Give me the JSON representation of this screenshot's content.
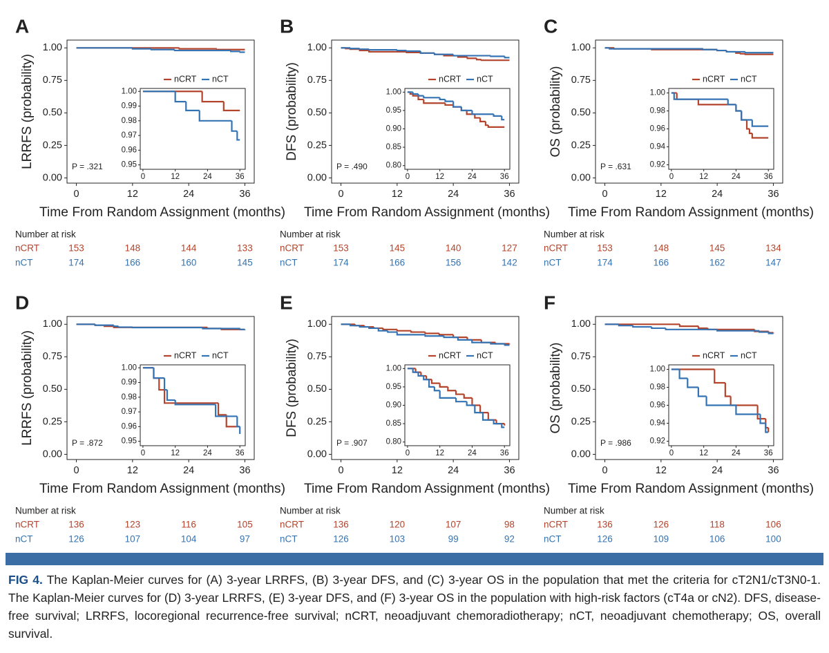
{
  "chart_data": [
    {
      "type": "step",
      "panel": "A",
      "ylabel": "LRRFS (probability)",
      "xlabel": "Time From Random Assignment (months)",
      "annotation": "P = .321",
      "xlim": [
        -2,
        38
      ],
      "ylim": [
        -0.04,
        1.06
      ],
      "xticks": [
        0,
        12,
        24,
        36
      ],
      "yticks": [
        {
          "value": 0,
          "label": "0.00"
        },
        0.25,
        {
          "value": 0.5,
          "label": "0.50"
        },
        0.75,
        {
          "value": 1,
          "label": "1.00"
        }
      ],
      "inset": {
        "xlim": [
          -1,
          38
        ],
        "ylim": [
          0.947,
          1.002
        ],
        "xticks": [
          0,
          12,
          24,
          36
        ],
        "yticks": [
          0.95,
          0.96,
          0.97,
          0.98,
          0.99,
          {
            "value": 1,
            "label": "1.00"
          }
        ]
      },
      "series": [
        {
          "name": "nCRT",
          "color": "#b4432b",
          "x": [
            0,
            22,
            30,
            36
          ],
          "values": [
            1,
            0.993,
            0.987,
            0.987
          ]
        },
        {
          "name": "nCT",
          "color": "#3473b3",
          "x": [
            0,
            12,
            16,
            21,
            33,
            35,
            36
          ],
          "values": [
            1,
            0.993,
            0.987,
            0.98,
            0.973,
            0.967,
            0.967
          ]
        }
      ],
      "risk_table": {
        "title": "Number at risk",
        "rows": [
          {
            "name": "nCRT",
            "values": [
              153,
              148,
              144,
              133
            ]
          },
          {
            "name": "nCT",
            "values": [
              174,
              166,
              160,
              145
            ]
          }
        ]
      }
    },
    {
      "type": "step",
      "panel": "B",
      "ylabel": "DFS (probability)",
      "xlabel": "Time From Random Assignment (months)",
      "annotation": "P = .490",
      "xlim": [
        -2,
        38
      ],
      "ylim": [
        -0.04,
        1.06
      ],
      "xticks": [
        0,
        12,
        24,
        36
      ],
      "yticks": [
        {
          "value": 0,
          "label": "0.00"
        },
        0.25,
        {
          "value": 0.5,
          "label": "0.50"
        },
        0.75,
        {
          "value": 1,
          "label": "1.00"
        }
      ],
      "inset": {
        "xlim": [
          -1,
          38
        ],
        "ylim": [
          0.79,
          1.01
        ],
        "xticks": [
          0,
          12,
          24,
          36
        ],
        "yticks": [
          {
            "value": 0.8,
            "label": "0.80"
          },
          0.85,
          {
            "value": 0.9,
            "label": "0.90"
          },
          0.95,
          {
            "value": 1,
            "label": "1.00"
          }
        ]
      },
      "series": [
        {
          "name": "nCRT",
          "color": "#b4432b",
          "x": [
            0,
            1,
            2,
            4,
            6,
            14,
            17,
            20,
            22,
            25,
            27,
            29,
            30,
            36
          ],
          "values": [
            1,
            0.995,
            0.99,
            0.98,
            0.97,
            0.965,
            0.96,
            0.95,
            0.94,
            0.93,
            0.92,
            0.91,
            0.905,
            0.905
          ]
        },
        {
          "name": "nCT",
          "color": "#3473b3",
          "x": [
            0,
            2,
            4,
            6,
            12,
            14,
            17,
            20,
            24,
            32,
            35,
            36
          ],
          "values": [
            1,
            0.995,
            0.99,
            0.985,
            0.98,
            0.975,
            0.96,
            0.95,
            0.94,
            0.935,
            0.925,
            0.925
          ]
        }
      ],
      "risk_table": {
        "title": "Number at risk",
        "rows": [
          {
            "name": "nCRT",
            "values": [
              153,
              145,
              140,
              127
            ]
          },
          {
            "name": "nCT",
            "values": [
              174,
              166,
              156,
              142
            ]
          }
        ]
      }
    },
    {
      "type": "step",
      "panel": "C",
      "ylabel": "OS (probability)",
      "xlabel": "Time From Random Assignment (months)",
      "annotation": "P = .631",
      "xlim": [
        -2,
        38
      ],
      "ylim": [
        -0.04,
        1.06
      ],
      "xticks": [
        0,
        12,
        24,
        36
      ],
      "yticks": [
        {
          "value": 0,
          "label": "0.00"
        },
        0.25,
        {
          "value": 0.5,
          "label": "0.50"
        },
        0.75,
        {
          "value": 1,
          "label": "1.00"
        }
      ],
      "inset": {
        "xlim": [
          -1,
          38
        ],
        "ylim": [
          0.915,
          1.005
        ],
        "xticks": [
          0,
          12,
          24,
          36
        ],
        "yticks": [
          0.92,
          0.94,
          0.96,
          0.98,
          {
            "value": 1,
            "label": "1.00"
          }
        ]
      },
      "series": [
        {
          "name": "nCRT",
          "color": "#b4432b",
          "x": [
            0,
            2,
            10,
            24,
            26,
            28,
            29,
            30,
            36
          ],
          "values": [
            1,
            0.993,
            0.987,
            0.98,
            0.97,
            0.96,
            0.955,
            0.95,
            0.95
          ]
        },
        {
          "name": "nCT",
          "color": "#3473b3",
          "x": [
            0,
            1,
            21,
            24,
            26,
            30,
            36
          ],
          "values": [
            1,
            0.993,
            0.987,
            0.98,
            0.97,
            0.963,
            0.963
          ]
        }
      ],
      "risk_table": {
        "title": "Number at risk",
        "rows": [
          {
            "name": "nCRT",
            "values": [
              153,
              148,
              145,
              134
            ]
          },
          {
            "name": "nCT",
            "values": [
              174,
              166,
              162,
              147
            ]
          }
        ]
      }
    },
    {
      "type": "step",
      "panel": "D",
      "ylabel": "LRRFS (probability)",
      "xlabel": "Time From Random Assignment (months)",
      "annotation": "P = .872",
      "xlim": [
        -2,
        38
      ],
      "ylim": [
        -0.04,
        1.06
      ],
      "xticks": [
        0,
        12,
        24,
        36
      ],
      "yticks": [
        {
          "value": 0,
          "label": "0.00"
        },
        0.25,
        {
          "value": 0.5,
          "label": "0.50"
        },
        0.75,
        {
          "value": 1,
          "label": "1.00"
        }
      ],
      "inset": {
        "xlim": [
          -1,
          38
        ],
        "ylim": [
          0.947,
          1.002
        ],
        "xticks": [
          0,
          12,
          24,
          36
        ],
        "yticks": [
          0.95,
          0.96,
          0.97,
          0.98,
          0.99,
          {
            "value": 1,
            "label": "1.00"
          }
        ]
      },
      "series": [
        {
          "name": "nCRT",
          "color": "#b4432b",
          "x": [
            0,
            4,
            6,
            8,
            28,
            31,
            36
          ],
          "values": [
            1,
            0.993,
            0.985,
            0.976,
            0.968,
            0.96,
            0.96
          ]
        },
        {
          "name": "nCT",
          "color": "#3473b3",
          "x": [
            0,
            4,
            8,
            9,
            12,
            27,
            35,
            36
          ],
          "values": [
            1,
            0.993,
            0.985,
            0.978,
            0.975,
            0.967,
            0.96,
            0.955
          ]
        }
      ],
      "risk_table": {
        "title": "Number at risk",
        "rows": [
          {
            "name": "nCRT",
            "values": [
              136,
              123,
              116,
              105
            ]
          },
          {
            "name": "nCT",
            "values": [
              126,
              107,
              104,
              97
            ]
          }
        ]
      }
    },
    {
      "type": "step",
      "panel": "E",
      "ylabel": "DFS (probability)",
      "xlabel": "Time From Random Assignment (months)",
      "annotation": "P = .907",
      "xlim": [
        -2,
        38
      ],
      "ylim": [
        -0.04,
        1.06
      ],
      "xticks": [
        0,
        12,
        24,
        36
      ],
      "yticks": [
        {
          "value": 0,
          "label": "0.00"
        },
        0.25,
        {
          "value": 0.5,
          "label": "0.50"
        },
        0.75,
        {
          "value": 1,
          "label": "1.00"
        }
      ],
      "inset": {
        "xlim": [
          -1,
          38
        ],
        "ylim": [
          0.79,
          1.01
        ],
        "xticks": [
          0,
          12,
          24,
          36
        ],
        "yticks": [
          {
            "value": 0.8,
            "label": "0.80"
          },
          0.85,
          {
            "value": 0.9,
            "label": "0.90"
          },
          0.95,
          {
            "value": 1,
            "label": "1.00"
          }
        ]
      },
      "series": [
        {
          "name": "nCRT",
          "color": "#b4432b",
          "x": [
            0,
            3,
            5,
            7,
            9,
            12,
            15,
            18,
            21,
            24,
            27,
            30,
            33,
            36
          ],
          "values": [
            1,
            0.99,
            0.98,
            0.97,
            0.96,
            0.95,
            0.94,
            0.93,
            0.92,
            0.9,
            0.88,
            0.86,
            0.85,
            0.845
          ]
        },
        {
          "name": "nCT",
          "color": "#3473b3",
          "x": [
            0,
            2,
            4,
            6,
            8,
            10,
            12,
            18,
            22,
            25,
            28,
            32,
            35,
            36
          ],
          "values": [
            1,
            0.99,
            0.98,
            0.97,
            0.95,
            0.94,
            0.92,
            0.91,
            0.9,
            0.88,
            0.86,
            0.85,
            0.84,
            0.84
          ]
        }
      ],
      "risk_table": {
        "title": "Number at risk",
        "rows": [
          {
            "name": "nCRT",
            "values": [
              136,
              120,
              107,
              98
            ]
          },
          {
            "name": "nCT",
            "values": [
              126,
              103,
              99,
              92
            ]
          }
        ]
      }
    },
    {
      "type": "step",
      "panel": "F",
      "ylabel": "OS (probability)",
      "xlabel": "Time From Random Assignment (months)",
      "annotation": "P = .986",
      "xlim": [
        -2,
        38
      ],
      "ylim": [
        -0.04,
        1.06
      ],
      "xticks": [
        0,
        12,
        24,
        36
      ],
      "yticks": [
        {
          "value": 0,
          "label": "0.00"
        },
        0.25,
        {
          "value": 0.5,
          "label": "0.50"
        },
        0.75,
        {
          "value": 1,
          "label": "1.00"
        }
      ],
      "inset": {
        "xlim": [
          -1,
          38
        ],
        "ylim": [
          0.915,
          1.005
        ],
        "xticks": [
          0,
          12,
          24,
          36
        ],
        "yticks": [
          0.92,
          0.94,
          0.96,
          0.98,
          {
            "value": 1,
            "label": "1.00"
          }
        ]
      },
      "series": [
        {
          "name": "nCRT",
          "color": "#b4432b",
          "x": [
            0,
            16,
            20,
            22,
            32,
            35,
            36
          ],
          "values": [
            1,
            0.985,
            0.97,
            0.96,
            0.945,
            0.935,
            0.93
          ]
        },
        {
          "name": "nCT",
          "color": "#3473b3",
          "x": [
            0,
            3,
            6,
            10,
            13,
            24,
            33,
            35,
            36
          ],
          "values": [
            1,
            0.99,
            0.98,
            0.97,
            0.96,
            0.95,
            0.94,
            0.93,
            0.93
          ]
        }
      ],
      "risk_table": {
        "title": "Number at risk",
        "rows": [
          {
            "name": "nCRT",
            "values": [
              136,
              126,
              118,
              106
            ]
          },
          {
            "name": "nCT",
            "values": [
              126,
              109,
              106,
              100
            ]
          }
        ]
      }
    }
  ],
  "caption": {
    "label": "FIG 4.",
    "text": "The Kaplan-Meier curves for (A) 3-year LRRFS, (B) 3-year DFS, and (C) 3-year OS in the population that met the criteria for cT2N1/cT3N0-1. The Kaplan-Meier curves for (D) 3-year LRRFS, (E) 3-year DFS, and (F) 3-year OS in the population with high-risk factors (cT4a or cN2). DFS, disease-free survival; LRRFS, locoregional recurrence-free survival; nCRT, neoadjuvant chemoradiotherapy; nCT, neoadjuvant chemotherapy; OS, overall survival."
  }
}
